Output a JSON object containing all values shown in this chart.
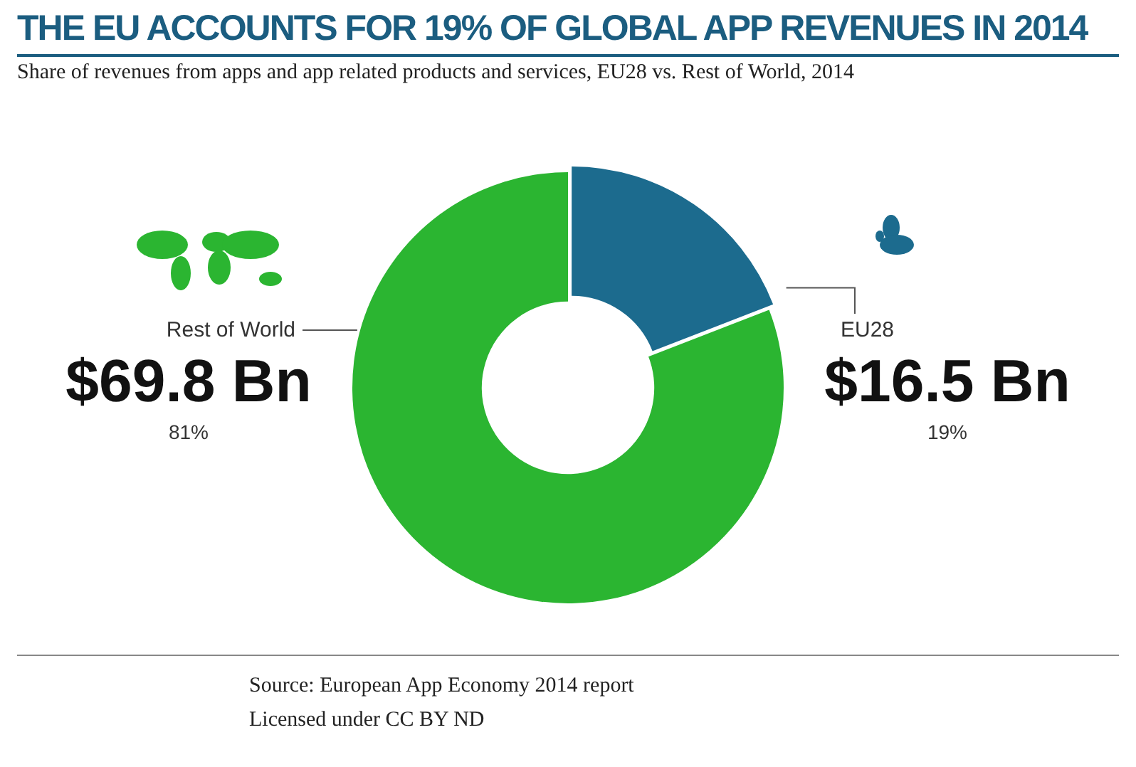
{
  "chart_data": {
    "type": "donut",
    "title": "THE EU ACCOUNTS FOR 19% OF GLOBAL APP REVENUES IN 2014",
    "subtitle": "Share of revenues from apps and app related products and services, EU28 vs. Rest of World, 2014",
    "categories": [
      "EU28",
      "Rest of World"
    ],
    "values": [
      16.5,
      69.8
    ],
    "colors": [
      "#1c6b8e",
      "#2bb531"
    ],
    "value_labels": [
      "$16.5 Bn",
      "$69.8 Bn"
    ],
    "legend": false,
    "annotations": [
      "19%",
      "81%",
      "Source: European App Economy 2014 report",
      "Licensed under CC BY ND"
    ]
  }
}
